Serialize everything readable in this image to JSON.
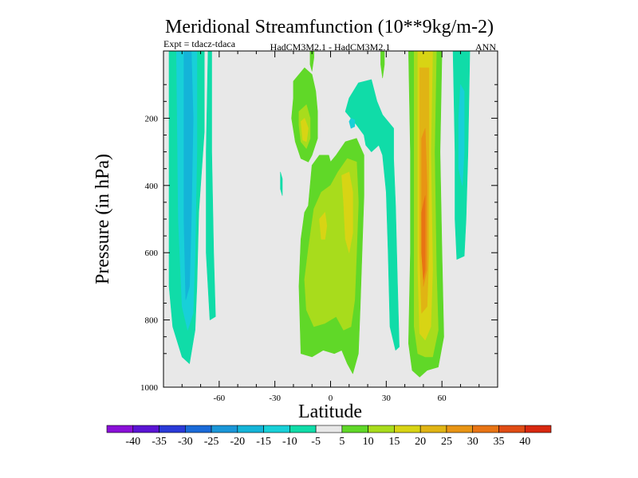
{
  "chart_data": {
    "type": "filled-contour",
    "title": "Meridional Streamfunction (10**9kg/m-2)",
    "subtitle_left": "Expt = tdacz-tdaca",
    "subtitle_center": "HadCM3M2.1 - HadCM3M2.1",
    "subtitle_right": "ANN",
    "xlabel": "Latitude",
    "ylabel": "Pressure (in hPa)",
    "xlim": [
      -90,
      90
    ],
    "ylim": [
      1000,
      0
    ],
    "x_ticks": [
      -60,
      -30,
      0,
      30,
      60
    ],
    "x_tick_labels": [
      "-60",
      "-30",
      "0",
      "30",
      "60"
    ],
    "y_ticks": [
      200,
      400,
      600,
      800,
      1000
    ],
    "y_tick_labels": [
      "200",
      "400",
      "600",
      "800",
      "1000"
    ],
    "background_color": "#e8e8e8",
    "colorbar": {
      "colors": [
        "#8a10d8",
        "#5a14d4",
        "#2a3ad8",
        "#1a6ad8",
        "#1a96d8",
        "#14b4d8",
        "#18d0d8",
        "#10dca8",
        "#e8e8e8",
        "#60d828",
        "#a8dc1c",
        "#d8d414",
        "#e0b414",
        "#e89414",
        "#e87414",
        "#e04c14",
        "#d82810"
      ],
      "labels": [
        "-40",
        "-35",
        "-30",
        "-25",
        "-20",
        "-15",
        "-10",
        "-5",
        "5",
        "10",
        "15",
        "20",
        "25",
        "30",
        "35",
        "40"
      ]
    },
    "regions": [
      {
        "name": "sh-deep-cell-outer",
        "level": -5,
        "color": "#10dca8",
        "points": [
          [
            -87,
            0
          ],
          [
            -68,
            0
          ],
          [
            -68,
            240
          ],
          [
            -71,
            480
          ],
          [
            -72,
            700
          ],
          [
            -73,
            830
          ],
          [
            -76,
            930
          ],
          [
            -80,
            910
          ],
          [
            -85,
            820
          ],
          [
            -87,
            700
          ]
        ]
      },
      {
        "name": "sh-deep-cell-mid",
        "level": -10,
        "color": "#18d0d8",
        "points": [
          [
            -83,
            0
          ],
          [
            -72,
            0
          ],
          [
            -72,
            300
          ],
          [
            -73,
            600
          ],
          [
            -74,
            780
          ],
          [
            -77,
            830
          ],
          [
            -80,
            760
          ],
          [
            -82,
            500
          ]
        ]
      },
      {
        "name": "sh-deep-cell-core",
        "level": -15,
        "color": "#14b4d8",
        "points": [
          [
            -79,
            0
          ],
          [
            -75,
            0
          ],
          [
            -74,
            200
          ],
          [
            -75,
            500
          ],
          [
            -76,
            700
          ],
          [
            -78,
            740
          ],
          [
            -79,
            500
          ],
          [
            -79,
            250
          ]
        ]
      },
      {
        "name": "sh-thin-cell",
        "level": -5,
        "color": "#10dca8",
        "points": [
          [
            -66,
            0
          ],
          [
            -64,
            0
          ],
          [
            -64,
            300
          ],
          [
            -63,
            600
          ],
          [
            -62,
            790
          ],
          [
            -65,
            800
          ],
          [
            -67,
            600
          ],
          [
            -67,
            300
          ]
        ]
      },
      {
        "name": "sh-speck",
        "level": -5,
        "color": "#10dca8",
        "points": [
          [
            -27,
            360
          ],
          [
            -26,
            380
          ],
          [
            -26,
            430
          ],
          [
            -27,
            410
          ]
        ]
      },
      {
        "name": "upper-trop-ring",
        "level": 5,
        "color": "#60d828",
        "points": [
          [
            -20,
            90
          ],
          [
            -14,
            50
          ],
          [
            -10,
            70
          ],
          [
            -8,
            120
          ],
          [
            -7,
            180
          ],
          [
            -7,
            260
          ],
          [
            -10,
            310
          ],
          [
            -12,
            330
          ],
          [
            -16,
            320
          ],
          [
            -19,
            270
          ],
          [
            -21,
            200
          ],
          [
            -20,
            140
          ]
        ]
      },
      {
        "name": "upper-trop-core",
        "level": 10,
        "color": "#a8dc1c",
        "points": [
          [
            -17,
            180
          ],
          [
            -13,
            160
          ],
          [
            -11,
            200
          ],
          [
            -11,
            260
          ],
          [
            -13,
            290
          ],
          [
            -16,
            270
          ],
          [
            -17,
            220
          ]
        ]
      },
      {
        "name": "upper-trop-peak",
        "level": 15,
        "color": "#d8d414",
        "points": [
          [
            -16,
            210
          ],
          [
            -14,
            200
          ],
          [
            -12,
            230
          ],
          [
            -13,
            270
          ],
          [
            -15,
            265
          ]
        ]
      },
      {
        "name": "equatorial-column",
        "level": 5,
        "color": "#60d828",
        "points": [
          [
            -12,
            460
          ],
          [
            -10,
            340
          ],
          [
            -6,
            310
          ],
          [
            -1,
            310
          ],
          [
            0,
            330
          ],
          [
            3,
            310
          ],
          [
            8,
            270
          ],
          [
            14,
            260
          ],
          [
            18,
            310
          ],
          [
            18,
            430
          ],
          [
            17,
            590
          ],
          [
            16,
            760
          ],
          [
            15,
            900
          ],
          [
            12,
            960
          ],
          [
            9,
            930
          ],
          [
            6,
            890
          ],
          [
            2,
            900
          ],
          [
            -4,
            890
          ],
          [
            -10,
            910
          ],
          [
            -16,
            900
          ],
          [
            -17,
            700
          ],
          [
            -16,
            560
          ],
          [
            -14,
            480
          ]
        ]
      },
      {
        "name": "equatorial-mid",
        "level": 10,
        "color": "#a8dc1c",
        "points": [
          [
            -12,
            590
          ],
          [
            -9,
            470
          ],
          [
            -5,
            420
          ],
          [
            0,
            400
          ],
          [
            4,
            360
          ],
          [
            9,
            320
          ],
          [
            14,
            330
          ],
          [
            15,
            450
          ],
          [
            14,
            600
          ],
          [
            13,
            740
          ],
          [
            11,
            820
          ],
          [
            7,
            830
          ],
          [
            3,
            790
          ],
          [
            -3,
            810
          ],
          [
            -9,
            820
          ],
          [
            -13,
            770
          ],
          [
            -14,
            680
          ]
        ]
      },
      {
        "name": "equatorial-core-n",
        "level": 15,
        "color": "#d8d414",
        "points": [
          [
            6,
            370
          ],
          [
            10,
            360
          ],
          [
            12,
            420
          ],
          [
            12,
            540
          ],
          [
            10,
            600
          ],
          [
            8,
            560
          ],
          [
            7,
            450
          ]
        ]
      },
      {
        "name": "equatorial-core-s",
        "level": 15,
        "color": "#d8d414",
        "points": [
          [
            -6,
            500
          ],
          [
            -3,
            480
          ],
          [
            -2,
            520
          ],
          [
            -3,
            560
          ],
          [
            -5,
            560
          ]
        ]
      },
      {
        "name": "eq-thin-upper",
        "level": 5,
        "color": "#60d828",
        "points": [
          [
            -11,
            0
          ],
          [
            -9,
            0
          ],
          [
            -9,
            20
          ],
          [
            -10,
            60
          ],
          [
            -11,
            40
          ]
        ]
      },
      {
        "name": "upper-teal-tongue",
        "level": -5,
        "color": "#10dca8",
        "points": [
          [
            8,
            180
          ],
          [
            10,
            140
          ],
          [
            15,
            95
          ],
          [
            22,
            85
          ],
          [
            25,
            150
          ],
          [
            28,
            190
          ],
          [
            34,
            230
          ],
          [
            34,
            320
          ],
          [
            35,
            460
          ],
          [
            36,
            680
          ],
          [
            37,
            880
          ],
          [
            35,
            890
          ],
          [
            32,
            820
          ],
          [
            31,
            600
          ],
          [
            30,
            420
          ],
          [
            28,
            310
          ],
          [
            26,
            280
          ],
          [
            22,
            300
          ],
          [
            19,
            280
          ],
          [
            18,
            250
          ],
          [
            14,
            220
          ],
          [
            11,
            200
          ]
        ]
      },
      {
        "name": "upper-teal-tongue-inner",
        "level": -10,
        "color": "#18d0d8",
        "points": [
          [
            10,
            210
          ],
          [
            11,
            200
          ],
          [
            13,
            205
          ],
          [
            13,
            225
          ],
          [
            11,
            230
          ]
        ]
      },
      {
        "name": "nh-thin-upper",
        "level": 5,
        "color": "#60d828",
        "points": [
          [
            27,
            0
          ],
          [
            29,
            0
          ],
          [
            29,
            40
          ],
          [
            28,
            80
          ],
          [
            27,
            40
          ]
        ]
      },
      {
        "name": "nh-ferrel-outer",
        "level": 5,
        "color": "#60d828",
        "points": [
          [
            42,
            0
          ],
          [
            60,
            0
          ],
          [
            59,
            300
          ],
          [
            60,
            600
          ],
          [
            61,
            850
          ],
          [
            58,
            940
          ],
          [
            52,
            950
          ],
          [
            48,
            970
          ],
          [
            44,
            950
          ],
          [
            42,
            870
          ],
          [
            43,
            600
          ],
          [
            43,
            300
          ]
        ]
      },
      {
        "name": "nh-ferrel-mid",
        "level": 10,
        "color": "#a8dc1c",
        "points": [
          [
            45,
            0
          ],
          [
            57,
            0
          ],
          [
            56,
            300
          ],
          [
            57,
            650
          ],
          [
            58,
            830
          ],
          [
            55,
            910
          ],
          [
            51,
            910
          ],
          [
            47,
            900
          ],
          [
            45,
            820
          ],
          [
            45,
            500
          ]
        ]
      },
      {
        "name": "nh-ferrel-core15",
        "level": 15,
        "color": "#d8d414",
        "points": [
          [
            47,
            0
          ],
          [
            55,
            0
          ],
          [
            54,
            300
          ],
          [
            55,
            650
          ],
          [
            54,
            820
          ],
          [
            51,
            860
          ],
          [
            48,
            840
          ],
          [
            47,
            650
          ],
          [
            47,
            300
          ]
        ]
      },
      {
        "name": "nh-ferrel-core20",
        "level": 20,
        "color": "#e0b414",
        "points": [
          [
            48,
            50
          ],
          [
            53,
            50
          ],
          [
            53,
            300
          ],
          [
            53,
            600
          ],
          [
            52,
            760
          ],
          [
            49,
            780
          ],
          [
            48,
            600
          ],
          [
            48,
            300
          ]
        ]
      },
      {
        "name": "nh-ferrel-core25",
        "level": 25,
        "color": "#e89414",
        "points": [
          [
            49,
            260
          ],
          [
            51,
            230
          ],
          [
            52,
            400
          ],
          [
            52,
            650
          ],
          [
            50,
            700
          ],
          [
            49,
            500
          ]
        ]
      },
      {
        "name": "nh-ferrel-core30",
        "level": 30,
        "color": "#e87414",
        "points": [
          [
            49,
            480
          ],
          [
            51,
            430
          ],
          [
            51,
            650
          ],
          [
            50,
            680
          ],
          [
            49,
            600
          ]
        ]
      },
      {
        "name": "nh-polar-outer",
        "level": -5,
        "color": "#10dca8",
        "points": [
          [
            66,
            0
          ],
          [
            75,
            0
          ],
          [
            74,
            300
          ],
          [
            73,
            500
          ],
          [
            72,
            610
          ],
          [
            68,
            620
          ],
          [
            67,
            500
          ],
          [
            67,
            300
          ]
        ]
      },
      {
        "name": "nh-polar-core",
        "level": -10,
        "color": "#18d0d8",
        "points": [
          [
            70,
            100
          ],
          [
            72,
            120
          ],
          [
            72,
            300
          ],
          [
            71,
            400
          ],
          [
            69,
            350
          ],
          [
            69,
            200
          ]
        ]
      }
    ]
  }
}
